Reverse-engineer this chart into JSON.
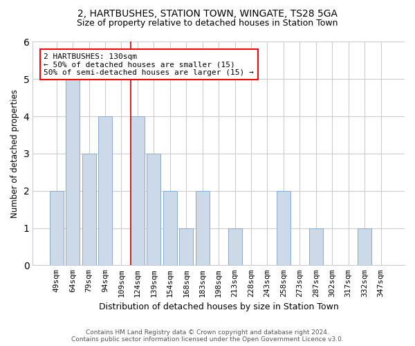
{
  "title1": "2, HARTBUSHES, STATION TOWN, WINGATE, TS28 5GA",
  "title2": "Size of property relative to detached houses in Station Town",
  "xlabel": "Distribution of detached houses by size in Station Town",
  "ylabel": "Number of detached properties",
  "categories": [
    "49sqm",
    "64sqm",
    "79sqm",
    "94sqm",
    "109sqm",
    "124sqm",
    "139sqm",
    "154sqm",
    "168sqm",
    "183sqm",
    "198sqm",
    "213sqm",
    "228sqm",
    "243sqm",
    "258sqm",
    "273sqm",
    "287sqm",
    "302sqm",
    "317sqm",
    "332sqm",
    "347sqm"
  ],
  "values": [
    2,
    5,
    3,
    4,
    0,
    4,
    3,
    2,
    1,
    2,
    0,
    1,
    0,
    0,
    2,
    0,
    1,
    0,
    0,
    1,
    0
  ],
  "bar_color": "#ccd9e8",
  "bar_edge_color": "#8aaac8",
  "annotation_text": "2 HARTBUSHES: 130sqm\n← 50% of detached houses are smaller (15)\n50% of semi-detached houses are larger (15) →",
  "annotation_box_color": "white",
  "annotation_box_edge": "red",
  "ylim": [
    0,
    6
  ],
  "yticks": [
    0,
    1,
    2,
    3,
    4,
    5,
    6
  ],
  "footer1": "Contains HM Land Registry data © Crown copyright and database right 2024.",
  "footer2": "Contains public sector information licensed under the Open Government Licence v3.0.",
  "grid_color": "#cccccc",
  "vline_color": "#cc0000",
  "vline_x_index": 5,
  "title1_fontsize": 10,
  "title2_fontsize": 9,
  "xlabel_fontsize": 9,
  "ylabel_fontsize": 8.5,
  "tick_fontsize": 8,
  "annot_fontsize": 8,
  "footer_fontsize": 6.5
}
